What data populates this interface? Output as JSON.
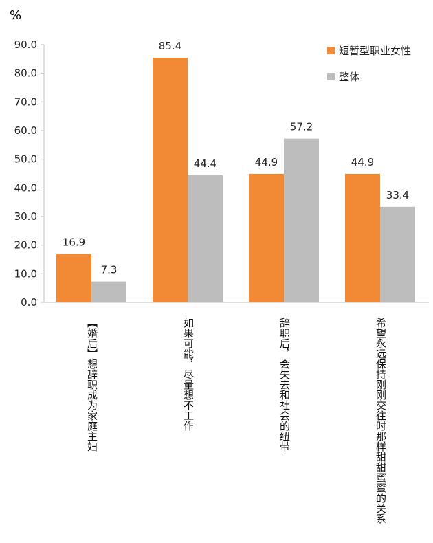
{
  "chart_data": {
    "type": "bar",
    "unit_label": "%",
    "categories": [
      "【婚后】想辞职成为家庭主妇",
      "如果可能，尽量想不工作",
      "辞职后，会失去和社会的纽带",
      "希望永远保持刚刚交往时那样甜甜蜜蜜的关系"
    ],
    "series": [
      {
        "name": "短暂型职业女性",
        "color": "#F28A35",
        "values": [
          16.9,
          85.4,
          44.9,
          44.9
        ]
      },
      {
        "name": "整体",
        "color": "#BDBDBD",
        "values": [
          7.3,
          44.4,
          57.2,
          33.4
        ]
      }
    ],
    "ylim": [
      0,
      90
    ],
    "yticks": [
      "0.0",
      "10.0",
      "20.0",
      "30.0",
      "40.0",
      "50.0",
      "60.0",
      "70.0",
      "80.0",
      "90.0"
    ],
    "grid": false,
    "legend_position": "top-right"
  }
}
